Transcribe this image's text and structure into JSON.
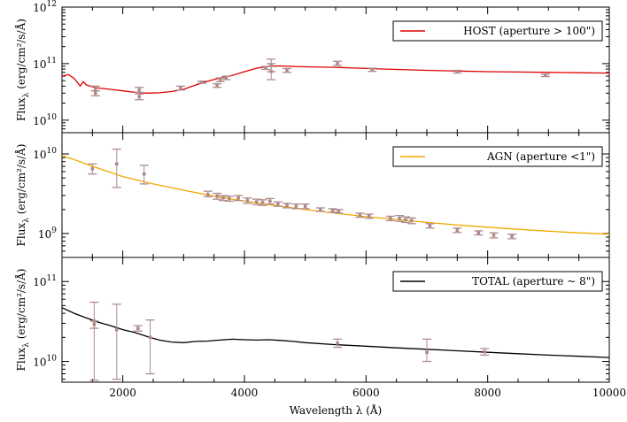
{
  "chart_data": {
    "type": "line",
    "xlabel": "Wavelength λ (Å)",
    "xlim": [
      1000,
      10000
    ],
    "xticks": [
      2000,
      4000,
      6000,
      8000,
      10000
    ],
    "grid": false,
    "panels": [
      {
        "key": "host",
        "ylabel": "Flux_λ (erg/cm²/s/Å)",
        "yscale": "log",
        "ylim": [
          6000000000.0,
          1000000000000.0
        ],
        "yticks": [
          {
            "exp": "10",
            "val": 10000000000.0
          },
          {
            "exp": "11",
            "val": 100000000000.0
          },
          {
            "exp": "12",
            "val": 1000000000000.0
          }
        ],
        "legend_position": "top-right",
        "series": [
          {
            "name": "HOST (aperture > 100\")",
            "color": "#dd0000",
            "x": [
              1000,
              1100,
              1200,
              1300,
              1350,
              1400,
              1500,
              1600,
              1800,
              2000,
              2200,
              2400,
              2600,
              2800,
              3000,
              3200,
              3400,
              3600,
              3800,
              4000,
              4200,
              4400,
              4600,
              4800,
              5000,
              5500,
              6000,
              6500,
              7000,
              7500,
              8000,
              8500,
              9000,
              9500,
              10000
            ],
            "y": [
              60000000000.0,
              64000000000.0,
              55000000000.0,
              40000000000.0,
              48000000000.0,
              42000000000.0,
              39000000000.0,
              37000000000.0,
              35000000000.0,
              33000000000.0,
              31000000000.0,
              30000000000.0,
              30500000000.0,
              32000000000.0,
              35000000000.0,
              42000000000.0,
              49000000000.0,
              56000000000.0,
              62000000000.0,
              72000000000.0,
              83000000000.0,
              90000000000.0,
              91000000000.0,
              89000000000.0,
              88000000000.0,
              86000000000.0,
              82000000000.0,
              79000000000.0,
              76000000000.0,
              74000000000.0,
              72000000000.0,
              71000000000.0,
              70000000000.0,
              69000000000.0,
              68000000000.0
            ]
          }
        ],
        "points": {
          "color": "#b08a8a",
          "data": [
            {
              "x": 1550,
              "y": 36000000000.0,
              "lo": 33000000000.0,
              "hi": 40000000000.0
            },
            {
              "x": 1550,
              "y": 30000000000.0,
              "lo": 27000000000.0,
              "hi": 33000000000.0
            },
            {
              "x": 2270,
              "y": 34000000000.0,
              "lo": 31000000000.0,
              "hi": 38000000000.0
            },
            {
              "x": 2270,
              "y": 26000000000.0,
              "lo": 23000000000.0,
              "hi": 29000000000.0
            },
            {
              "x": 2950,
              "y": 37000000000.0,
              "lo": 34000000000.0,
              "hi": 40000000000.0
            },
            {
              "x": 3300,
              "y": 47000000000.0,
              "lo": 45000000000.0,
              "hi": 49000000000.0
            },
            {
              "x": 3550,
              "y": 41000000000.0,
              "lo": 38000000000.0,
              "hi": 44000000000.0
            },
            {
              "x": 3600,
              "y": 52000000000.0,
              "lo": 48000000000.0,
              "hi": 56000000000.0
            },
            {
              "x": 3700,
              "y": 56000000000.0,
              "lo": 52000000000.0,
              "hi": 60000000000.0
            },
            {
              "x": 4350,
              "y": 84000000000.0,
              "lo": 79000000000.0,
              "hi": 89000000000.0
            },
            {
              "x": 4440,
              "y": 93000000000.0,
              "lo": 72000000000.0,
              "hi": 120000000000.0
            },
            {
              "x": 4440,
              "y": 73000000000.0,
              "lo": 52000000000.0,
              "hi": 100000000000.0
            },
            {
              "x": 4700,
              "y": 76000000000.0,
              "lo": 70000000000.0,
              "hi": 82000000000.0
            },
            {
              "x": 5530,
              "y": 100000000000.0,
              "lo": 93000000000.0,
              "hi": 110000000000.0
            },
            {
              "x": 6100,
              "y": 78000000000.0,
              "lo": 73000000000.0,
              "hi": 83000000000.0
            },
            {
              "x": 7500,
              "y": 72000000000.0,
              "lo": 68000000000.0,
              "hi": 76000000000.0
            },
            {
              "x": 8950,
              "y": 62000000000.0,
              "lo": 59000000000.0,
              "hi": 65000000000.0
            }
          ]
        }
      },
      {
        "key": "agn",
        "ylabel": "Flux_λ (erg/cm²/s/Å)",
        "yscale": "log",
        "ylim": [
          500000000.0,
          18500000000.0
        ],
        "yticks": [
          {
            "exp": "9",
            "val": 1000000000.0
          },
          {
            "exp": "10",
            "val": 10000000000.0
          }
        ],
        "legend_position": "top-right",
        "series": [
          {
            "name": "AGN (aperture <1\")",
            "color": "#f0a800",
            "x": [
              1000,
              1200,
              1500,
              2000,
              2500,
              3000,
              3500,
              4000,
              4500,
              5000,
              5500,
              6000,
              6500,
              7000,
              7500,
              8000,
              8500,
              9000,
              9500,
              10000
            ],
            "y": [
              9500000000.0,
              8500000000.0,
              7000000000.0,
              5200000000.0,
              4200000000.0,
              3500000000.0,
              2950000000.0,
              2550000000.0,
              2250000000.0,
              2000000000.0,
              1800000000.0,
              1630000000.0,
              1500000000.0,
              1380000000.0,
              1280000000.0,
              1200000000.0,
              1130000000.0,
              1070000000.0,
              1020000000.0,
              980000000.0
            ]
          }
        ],
        "points": {
          "color": "#b08a8a",
          "data": [
            {
              "x": 1500,
              "y": 6500000000.0,
              "lo": 5600000000.0,
              "hi": 7500000000.0
            },
            {
              "x": 1900,
              "y": 7500000000.0,
              "lo": 3800000000.0,
              "hi": 11500000000.0
            },
            {
              "x": 2350,
              "y": 5600000000.0,
              "lo": 4200000000.0,
              "hi": 7200000000.0
            },
            {
              "x": 3400,
              "y": 3100000000.0,
              "lo": 2900000000.0,
              "hi": 3400000000.0
            },
            {
              "x": 3550,
              "y": 2950000000.0,
              "lo": 2700000000.0,
              "hi": 3200000000.0
            },
            {
              "x": 3650,
              "y": 2800000000.0,
              "lo": 2600000000.0,
              "hi": 3000000000.0
            },
            {
              "x": 3750,
              "y": 2750000000.0,
              "lo": 2550000000.0,
              "hi": 2950000000.0
            },
            {
              "x": 3900,
              "y": 2800000000.0,
              "lo": 2600000000.0,
              "hi": 3000000000.0
            },
            {
              "x": 4050,
              "y": 2600000000.0,
              "lo": 2400000000.0,
              "hi": 2800000000.0
            },
            {
              "x": 4200,
              "y": 2500000000.0,
              "lo": 2300000000.0,
              "hi": 2700000000.0
            },
            {
              "x": 4300,
              "y": 2450000000.0,
              "lo": 2250000000.0,
              "hi": 2650000000.0
            },
            {
              "x": 4420,
              "y": 2550000000.0,
              "lo": 2350000000.0,
              "hi": 2750000000.0
            },
            {
              "x": 4550,
              "y": 2350000000.0,
              "lo": 2200000000.0,
              "hi": 2500000000.0
            },
            {
              "x": 4700,
              "y": 2250000000.0,
              "lo": 2100000000.0,
              "hi": 2400000000.0
            },
            {
              "x": 4850,
              "y": 2200000000.0,
              "lo": 2050000000.0,
              "hi": 2350000000.0
            },
            {
              "x": 5000,
              "y": 2200000000.0,
              "lo": 2050000000.0,
              "hi": 2350000000.0
            },
            {
              "x": 5250,
              "y": 2000000000.0,
              "lo": 1900000000.0,
              "hi": 2100000000.0
            },
            {
              "x": 5450,
              "y": 1950000000.0,
              "lo": 1850000000.0,
              "hi": 2050000000.0
            },
            {
              "x": 5550,
              "y": 1900000000.0,
              "lo": 1800000000.0,
              "hi": 2000000000.0
            },
            {
              "x": 5900,
              "y": 1700000000.0,
              "lo": 1600000000.0,
              "hi": 1800000000.0
            },
            {
              "x": 6050,
              "y": 1650000000.0,
              "lo": 1550000000.0,
              "hi": 1750000000.0
            },
            {
              "x": 6400,
              "y": 1550000000.0,
              "lo": 1450000000.0,
              "hi": 1650000000.0
            },
            {
              "x": 6550,
              "y": 1550000000.0,
              "lo": 1420000000.0,
              "hi": 1680000000.0
            },
            {
              "x": 6650,
              "y": 1500000000.0,
              "lo": 1380000000.0,
              "hi": 1620000000.0
            },
            {
              "x": 6750,
              "y": 1450000000.0,
              "lo": 1330000000.0,
              "hi": 1570000000.0
            },
            {
              "x": 7050,
              "y": 1250000000.0,
              "lo": 1170000000.0,
              "hi": 1330000000.0
            },
            {
              "x": 7500,
              "y": 1100000000.0,
              "lo": 1030000000.0,
              "hi": 1170000000.0
            },
            {
              "x": 7850,
              "y": 1020000000.0,
              "lo": 960000000.0,
              "hi": 1080000000.0
            },
            {
              "x": 8100,
              "y": 950000000.0,
              "lo": 880000000.0,
              "hi": 1020000000.0
            },
            {
              "x": 8400,
              "y": 920000000.0,
              "lo": 860000000.0,
              "hi": 980000000.0
            }
          ]
        }
      },
      {
        "key": "total",
        "ylabel": "Flux_λ (erg/cm²/s/Å)",
        "yscale": "log",
        "ylim": [
          5500000000.0,
          200000000000.0
        ],
        "yticks": [
          {
            "exp": "10",
            "val": 10000000000.0
          },
          {
            "exp": "11",
            "val": 100000000000.0
          }
        ],
        "legend_position": "top-right",
        "series": [
          {
            "name": "TOTAL (aperture ~ 8\")",
            "color": "#000000",
            "x": [
              1000,
              1200,
              1400,
              1600,
              1800,
              2000,
              2200,
              2400,
              2600,
              2800,
              3000,
              3200,
              3400,
              3600,
              3800,
              4000,
              4200,
              4400,
              4600,
              4800,
              5000,
              5500,
              6000,
              6500,
              7000,
              7500,
              8000,
              8500,
              9000,
              9500,
              10000
            ],
            "y": [
              47000000000.0,
              40000000000.0,
              35000000000.0,
              31000000000.0,
              28000000000.0,
              25000000000.0,
              23000000000.0,
              20500000000.0,
              18500000000.0,
              17500000000.0,
              17200000000.0,
              17800000000.0,
              18000000000.0,
              18500000000.0,
              19000000000.0,
              18700000000.0,
              18500000000.0,
              18700000000.0,
              18300000000.0,
              17800000000.0,
              17200000000.0,
              16200000000.0,
              15500000000.0,
              14800000000.0,
              14200000000.0,
              13600000000.0,
              13000000000.0,
              12500000000.0,
              12000000000.0,
              11600000000.0,
              11200000000.0
            ]
          }
        ],
        "points": {
          "color": "#b08a8a",
          "data": [
            {
              "x": 1530,
              "y": 32000000000.0,
              "lo": 5800000000.0,
              "hi": 55000000000.0
            },
            {
              "x": 1530,
              "y": 29000000000.0,
              "lo": 26000000000.0,
              "hi": 32000000000.0
            },
            {
              "x": 1900,
              "y": 25000000000.0,
              "lo": 6000000000.0,
              "hi": 52000000000.0
            },
            {
              "x": 2250,
              "y": 26000000000.0,
              "lo": 24000000000.0,
              "hi": 28000000000.0
            },
            {
              "x": 2450,
              "y": 20000000000.0,
              "lo": 7000000000.0,
              "hi": 33000000000.0
            },
            {
              "x": 5530,
              "y": 17000000000.0,
              "lo": 15000000000.0,
              "hi": 19000000000.0
            },
            {
              "x": 7000,
              "y": 13000000000.0,
              "lo": 10000000000.0,
              "hi": 19000000000.0
            },
            {
              "x": 7950,
              "y": 13200000000.0,
              "lo": 12000000000.0,
              "hi": 14500000000.0
            }
          ]
        }
      }
    ]
  }
}
